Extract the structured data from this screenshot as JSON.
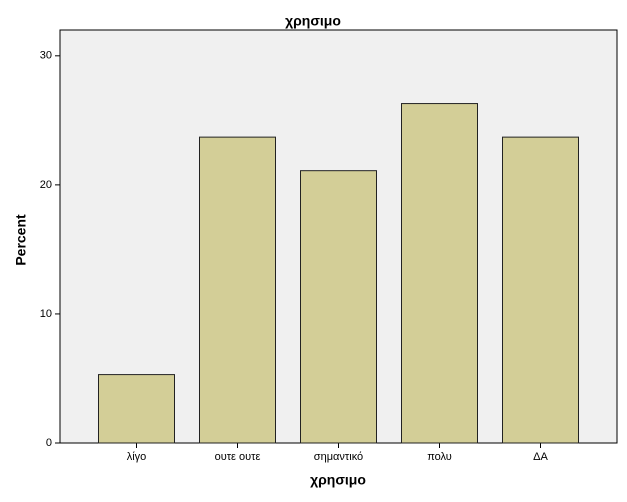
{
  "chart_data": {
    "type": "bar",
    "title": "χρησιμο",
    "x_label": "χρησιμο",
    "y_label": "Percent",
    "categories": [
      "λίγο",
      "ουτε ουτε",
      "σημαντικό",
      "πολυ",
      "ΔΑ"
    ],
    "values": [
      5.3,
      23.7,
      21.1,
      26.3,
      23.7
    ],
    "color": "#d3ce97",
    "ylim": [
      0,
      32
    ],
    "yticks": [
      0,
      10,
      20,
      30
    ]
  }
}
